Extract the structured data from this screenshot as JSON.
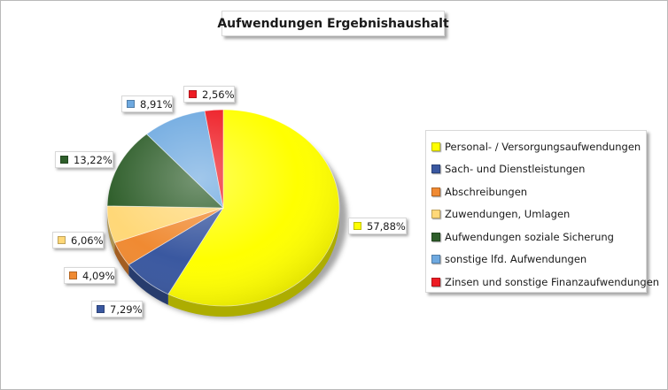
{
  "chart_data": {
    "type": "pie",
    "title": "Aufwendungen Ergebnishaushalt",
    "legend_position": "right",
    "slices": [
      {
        "label": "Personal- / Versorgungsaufwendungen",
        "value": 57.88,
        "value_label": "57,88%",
        "color": "#ffff00"
      },
      {
        "label": "Sach- und Dienstleistungen",
        "value": 7.29,
        "value_label": "7,29%",
        "color": "#3a58a0"
      },
      {
        "label": "Abschreibungen",
        "value": 4.09,
        "value_label": "4,09%",
        "color": "#f08a32"
      },
      {
        "label": "Zuwendungen, Umlagen",
        "value": 6.06,
        "value_label": "6,06%",
        "color": "#ffd878"
      },
      {
        "label": "Aufwendungen soziale Sicherung",
        "value": 13.22,
        "value_label": "13,22%",
        "color": "#2e5e2a"
      },
      {
        "label": "sonstige lfd. Aufwendungen",
        "value": 8.91,
        "value_label": "8,91%",
        "color": "#6ea9e0"
      },
      {
        "label": "Zinsen und sonstige Finanzaufwendungen",
        "value": 2.56,
        "value_label": "2,56%",
        "color": "#ee1c24"
      }
    ]
  }
}
